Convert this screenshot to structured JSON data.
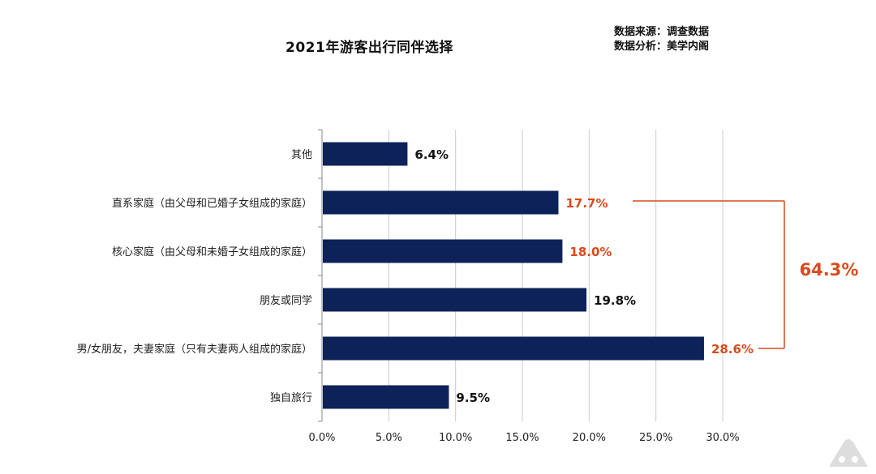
{
  "header": {
    "title": "2021年游客出行同伴选择",
    "source_line": "数据来源：调查数据",
    "analysis_line": "数据分析：美学内阁"
  },
  "chart_data": {
    "type": "bar",
    "orientation": "horizontal",
    "categories": [
      "其他",
      "直系家庭（由父母和已婚子女组成的家庭）",
      "核心家庭（由父母和未婚子女组成的家庭）",
      "朋友或同学",
      "男/女朋友，夫妻家庭（只有夫妻两人组成的家庭）",
      "独自旅行"
    ],
    "values": [
      6.4,
      17.7,
      18.0,
      19.8,
      28.6,
      9.5
    ],
    "value_labels": [
      "6.4%",
      "17.7%",
      "18.0%",
      "19.8%",
      "28.6%",
      "9.5%"
    ],
    "highlighted": [
      false,
      true,
      true,
      false,
      true,
      false
    ],
    "xlim": [
      0,
      30
    ],
    "xticks": [
      "0.0%",
      "5.0%",
      "10.0%",
      "15.0%",
      "20.0%",
      "25.0%",
      "30.0%"
    ],
    "grid": true,
    "bracket_total": "64.3%",
    "colors": {
      "bar": "#0d2259",
      "highlight": "#d94a1e",
      "text": "#111111",
      "grid": "#cccccc"
    }
  }
}
